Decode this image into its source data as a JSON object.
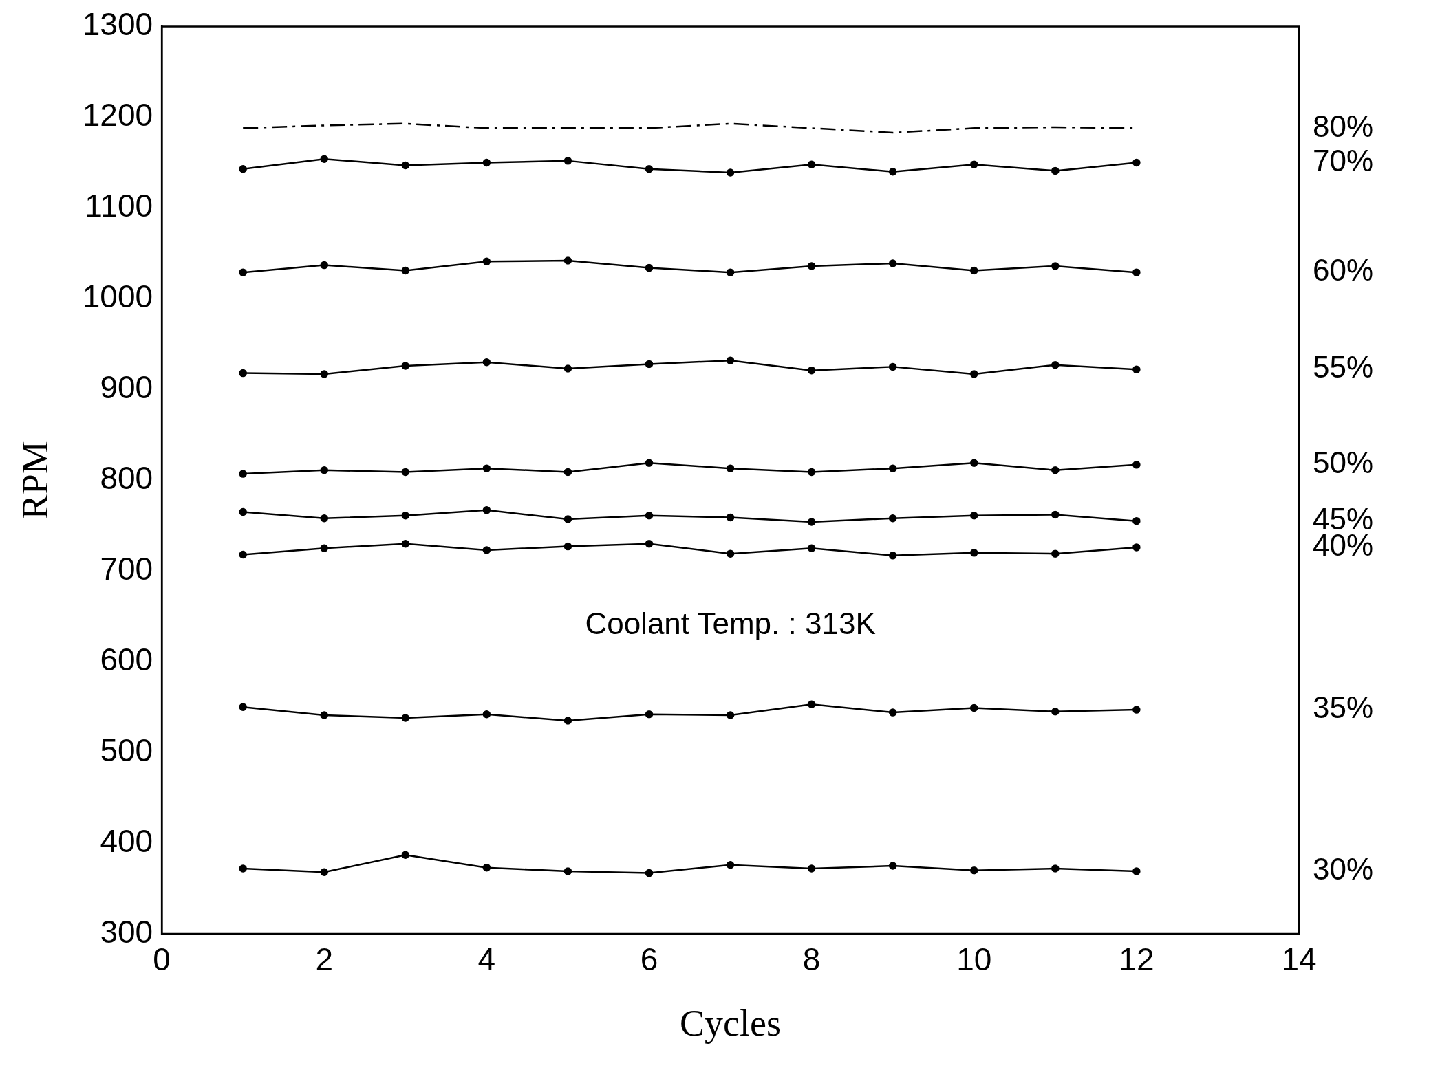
{
  "chart_data": {
    "type": "line",
    "xlabel": "Cycles",
    "ylabel": "RPM",
    "x": [
      1,
      2,
      3,
      4,
      5,
      6,
      7,
      8,
      9,
      10,
      11,
      12
    ],
    "xlim": [
      0,
      14
    ],
    "xticks": [
      0,
      2,
      4,
      6,
      8,
      10,
      12,
      14
    ],
    "ylim": [
      300,
      1300
    ],
    "yticks": [
      300,
      400,
      500,
      600,
      700,
      800,
      900,
      1000,
      1100,
      1200,
      1300
    ],
    "grid": false,
    "legend": false,
    "marker": "circle",
    "annotations": [
      "Coolant Temp. : 313K"
    ],
    "series": [
      {
        "name": "80%",
        "color": "#000000",
        "marker": "none",
        "line_style": "dashed",
        "values": [
          1188,
          1191,
          1193,
          1188,
          1188,
          1188,
          1193,
          1188,
          1183,
          1188,
          1189,
          1188
        ]
      },
      {
        "name": "70%",
        "color": "#000000",
        "values": [
          1143,
          1154,
          1147,
          1150,
          1152,
          1143,
          1139,
          1148,
          1140,
          1148,
          1141,
          1150
        ]
      },
      {
        "name": "60%",
        "color": "#000000",
        "values": [
          1029,
          1037,
          1031,
          1041,
          1042,
          1034,
          1029,
          1036,
          1039,
          1031,
          1036,
          1029
        ]
      },
      {
        "name": "55%",
        "color": "#000000",
        "values": [
          918,
          917,
          926,
          930,
          923,
          928,
          932,
          921,
          925,
          917,
          927,
          922
        ]
      },
      {
        "name": "50%",
        "color": "#000000",
        "values": [
          807,
          811,
          809,
          813,
          809,
          819,
          813,
          809,
          813,
          819,
          811,
          817
        ]
      },
      {
        "name": "45%",
        "color": "#000000",
        "values": [
          765,
          758,
          761,
          767,
          757,
          761,
          759,
          754,
          758,
          761,
          762,
          755
        ]
      },
      {
        "name": "40%",
        "color": "#000000",
        "values": [
          718,
          725,
          730,
          723,
          727,
          730,
          719,
          725,
          717,
          720,
          719,
          726
        ]
      },
      {
        "name": "35%",
        "color": "#000000",
        "values": [
          550,
          541,
          538,
          542,
          535,
          542,
          541,
          553,
          544,
          549,
          545,
          547
        ]
      },
      {
        "name": "30%",
        "color": "#000000",
        "values": [
          372,
          368,
          387,
          373,
          369,
          367,
          376,
          372,
          375,
          370,
          372,
          369
        ]
      }
    ]
  }
}
